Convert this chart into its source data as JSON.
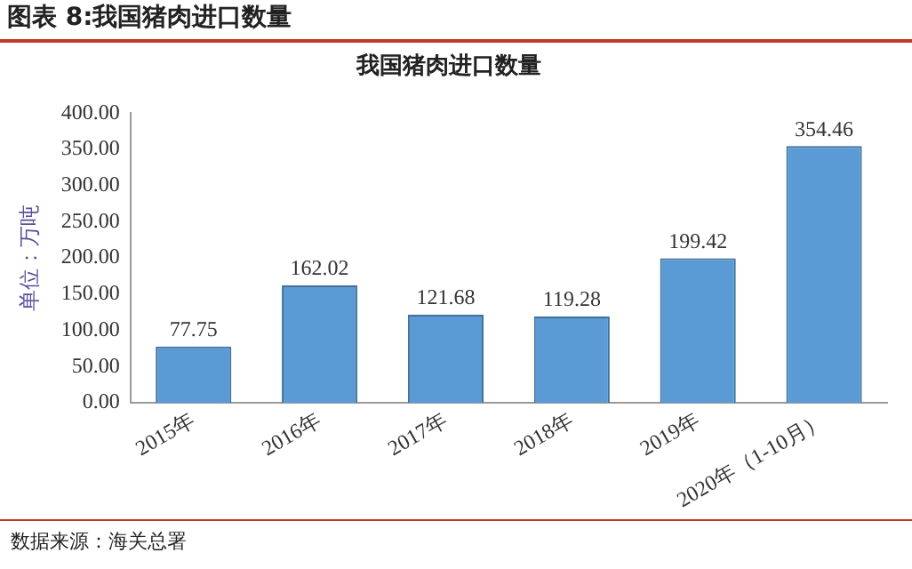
{
  "chart_data": {
    "type": "bar",
    "title": "我国猪肉进口数量",
    "ylabel": "单位：万吨",
    "categories": [
      "2015年",
      "2016年",
      "2017年",
      "2018年",
      "2019年",
      "2020年（1-10月）"
    ],
    "values": [
      77.75,
      162.02,
      121.68,
      119.28,
      199.42,
      354.46
    ],
    "color": "#5b9bd5",
    "ylim": [
      0,
      400
    ],
    "yticks": [
      {
        "value": 0,
        "label": "0.00"
      },
      {
        "value": 50,
        "label": "50.00"
      },
      {
        "value": 100,
        "label": "100.00"
      },
      {
        "value": 150,
        "label": "150.00"
      },
      {
        "value": 200,
        "label": "200.00"
      },
      {
        "value": 250,
        "label": "250.00"
      },
      {
        "value": 300,
        "label": "300.00"
      },
      {
        "value": 350,
        "label": "350.00"
      },
      {
        "value": 400,
        "label": "400.00"
      }
    ],
    "grid": false,
    "legend": false,
    "data_labels": true,
    "annotations": [
      "图表 8:我国猪肉进口数量",
      "数据来源：海关总署"
    ]
  }
}
